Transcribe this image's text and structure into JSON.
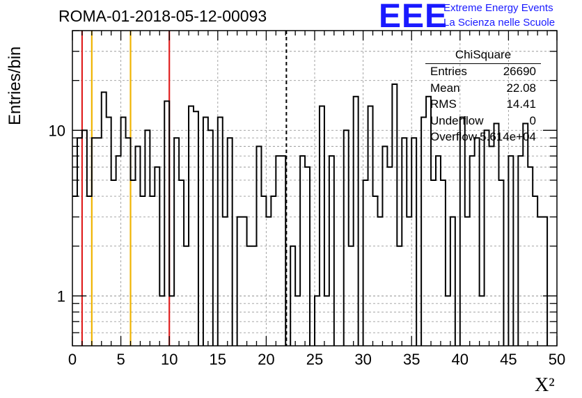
{
  "run_title": "ROMA-01-2018-05-12-00093",
  "logo": {
    "letters": "EEE",
    "line1": "Extreme Energy Events",
    "line2": "La Scienza nelle Scuole",
    "color": "#1a1aff"
  },
  "stats": {
    "title": "ChiSquare",
    "rows": [
      {
        "label": "Entries",
        "value": "26690"
      },
      {
        "label": "Mean",
        "value": "22.08"
      },
      {
        "label": "RMS",
        "value": "14.41"
      },
      {
        "label": "Underflow",
        "value": "0"
      },
      {
        "label": "Overflow",
        "value": "5.614e+04"
      }
    ]
  },
  "chart_data": {
    "type": "histogram",
    "xlabel": "X²",
    "ylabel": "Entries/bin",
    "xlim": [
      0,
      50
    ],
    "ylim": [
      0.5,
      40
    ],
    "yscale": "log",
    "grid": true,
    "bin_width": 0.5,
    "xticks": [
      0,
      5,
      10,
      15,
      20,
      25,
      30,
      35,
      40,
      45,
      50
    ],
    "ytick_labels": [
      {
        "value": 1,
        "label": "1"
      },
      {
        "value": 10,
        "label": "10"
      }
    ],
    "bins": [
      {
        "x": 0.0,
        "y": 4
      },
      {
        "x": 0.5,
        "y": 9
      },
      {
        "x": 1.0,
        "y": 10
      },
      {
        "x": 1.5,
        "y": 4
      },
      {
        "x": 2.0,
        "y": 9
      },
      {
        "x": 2.5,
        "y": 9
      },
      {
        "x": 3.0,
        "y": 17
      },
      {
        "x": 3.5,
        "y": 12
      },
      {
        "x": 4.0,
        "y": 5
      },
      {
        "x": 4.5,
        "y": 7
      },
      {
        "x": 5.0,
        "y": 12
      },
      {
        "x": 5.5,
        "y": 9
      },
      {
        "x": 6.0,
        "y": 5
      },
      {
        "x": 6.5,
        "y": 8
      },
      {
        "x": 7.0,
        "y": 4
      },
      {
        "x": 7.5,
        "y": 10
      },
      {
        "x": 8.0,
        "y": 4
      },
      {
        "x": 8.5,
        "y": 6
      },
      {
        "x": 9.0,
        "y": 1
      },
      {
        "x": 9.5,
        "y": 15
      },
      {
        "x": 10.0,
        "y": 1
      },
      {
        "x": 10.5,
        "y": 9
      },
      {
        "x": 11.0,
        "y": 5
      },
      {
        "x": 11.5,
        "y": 2
      },
      {
        "x": 12.0,
        "y": 14
      },
      {
        "x": 12.5,
        "y": 13
      },
      {
        "x": 13.0,
        "y": 0
      },
      {
        "x": 13.5,
        "y": 12
      },
      {
        "x": 14.0,
        "y": 10
      },
      {
        "x": 14.5,
        "y": 0
      },
      {
        "x": 15.0,
        "y": 12
      },
      {
        "x": 15.5,
        "y": 3
      },
      {
        "x": 16.0,
        "y": 9
      },
      {
        "x": 16.5,
        "y": 0
      },
      {
        "x": 17.0,
        "y": 3
      },
      {
        "x": 17.5,
        "y": 3
      },
      {
        "x": 18.0,
        "y": 2
      },
      {
        "x": 18.5,
        "y": 2
      },
      {
        "x": 19.0,
        "y": 8
      },
      {
        "x": 19.5,
        "y": 4
      },
      {
        "x": 20.0,
        "y": 3
      },
      {
        "x": 20.5,
        "y": 4
      },
      {
        "x": 21.0,
        "y": 7
      },
      {
        "x": 21.5,
        "y": 7
      },
      {
        "x": 22.0,
        "y": 0
      },
      {
        "x": 22.5,
        "y": 2
      },
      {
        "x": 23.0,
        "y": 1
      },
      {
        "x": 23.5,
        "y": 7
      },
      {
        "x": 24.0,
        "y": 6
      },
      {
        "x": 24.5,
        "y": 0
      },
      {
        "x": 25.0,
        "y": 1
      },
      {
        "x": 25.5,
        "y": 14
      },
      {
        "x": 26.0,
        "y": 1
      },
      {
        "x": 26.5,
        "y": 7
      },
      {
        "x": 27.0,
        "y": 0
      },
      {
        "x": 27.5,
        "y": 0
      },
      {
        "x": 28.0,
        "y": 10
      },
      {
        "x": 28.5,
        "y": 2
      },
      {
        "x": 29.0,
        "y": 16
      },
      {
        "x": 29.5,
        "y": 0
      },
      {
        "x": 30.0,
        "y": 5
      },
      {
        "x": 30.5,
        "y": 14
      },
      {
        "x": 31.0,
        "y": 4
      },
      {
        "x": 31.5,
        "y": 3
      },
      {
        "x": 32.0,
        "y": 8
      },
      {
        "x": 32.5,
        "y": 6
      },
      {
        "x": 33.0,
        "y": 19
      },
      {
        "x": 33.5,
        "y": 2
      },
      {
        "x": 34.0,
        "y": 9
      },
      {
        "x": 34.5,
        "y": 3
      },
      {
        "x": 35.0,
        "y": 9
      },
      {
        "x": 35.5,
        "y": 0
      },
      {
        "x": 36.0,
        "y": 12
      },
      {
        "x": 36.5,
        "y": 16
      },
      {
        "x": 37.0,
        "y": 5
      },
      {
        "x": 37.5,
        "y": 7
      },
      {
        "x": 38.0,
        "y": 5
      },
      {
        "x": 38.5,
        "y": 1
      },
      {
        "x": 39.0,
        "y": 3
      },
      {
        "x": 39.5,
        "y": 0
      },
      {
        "x": 40.0,
        "y": 12
      },
      {
        "x": 40.5,
        "y": 3
      },
      {
        "x": 41.0,
        "y": 7
      },
      {
        "x": 41.5,
        "y": 9
      },
      {
        "x": 42.0,
        "y": 1
      },
      {
        "x": 42.5,
        "y": 10
      },
      {
        "x": 43.0,
        "y": 8
      },
      {
        "x": 43.5,
        "y": 11
      },
      {
        "x": 44.0,
        "y": 5
      },
      {
        "x": 44.5,
        "y": 0
      },
      {
        "x": 45.0,
        "y": 7
      },
      {
        "x": 45.5,
        "y": 0
      },
      {
        "x": 46.0,
        "y": 7
      },
      {
        "x": 46.5,
        "y": 11
      },
      {
        "x": 47.0,
        "y": 6
      },
      {
        "x": 47.5,
        "y": 4
      },
      {
        "x": 48.0,
        "y": 3
      },
      {
        "x": 48.5,
        "y": 3
      },
      {
        "x": 49.0,
        "y": 0
      },
      {
        "x": 49.5,
        "y": 0
      }
    ],
    "reference_lines": [
      {
        "x": 1,
        "color": "#e02020",
        "style": "solid"
      },
      {
        "x": 2,
        "color": "#f0b400",
        "style": "solid"
      },
      {
        "x": 6,
        "color": "#f0b400",
        "style": "solid"
      },
      {
        "x": 10,
        "color": "#e02020",
        "style": "solid"
      },
      {
        "x": 22.08,
        "color": "#000000",
        "style": "dashed"
      }
    ]
  }
}
